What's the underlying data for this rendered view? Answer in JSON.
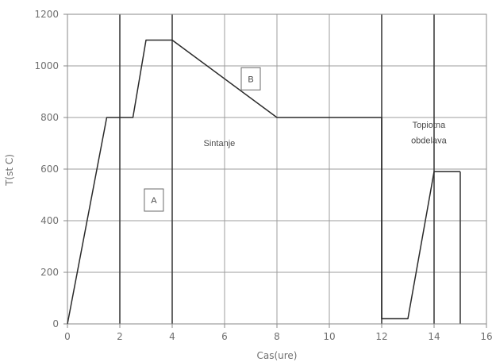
{
  "chart_data": {
    "type": "line",
    "title": "",
    "xlabel": "Cas(ure)",
    "ylabel": "T(st C)",
    "xlim": [
      0,
      16
    ],
    "ylim": [
      0,
      1200
    ],
    "xticks": [
      0,
      2,
      4,
      6,
      8,
      10,
      12,
      14,
      16
    ],
    "yticks": [
      0,
      200,
      400,
      600,
      800,
      1000,
      1200
    ],
    "grid": true,
    "bold_vertical_lines_at": [
      2,
      4,
      12,
      14,
      15
    ],
    "series": [
      {
        "name": "",
        "x": [
          0,
          1.5,
          2.5,
          3,
          4,
          8,
          12,
          12,
          13,
          14,
          15
        ],
        "y": [
          0,
          800,
          800,
          1100,
          1100,
          800,
          800,
          20,
          20,
          590,
          590
        ]
      }
    ],
    "annotations": [
      {
        "text": "A",
        "x": 3.3,
        "y": 480,
        "boxed": true
      },
      {
        "text": "B",
        "x": 7.0,
        "y": 950,
        "boxed": true
      },
      {
        "text": "Sintanje",
        "x": 5.8,
        "y": 690,
        "boxed": false
      },
      {
        "text": "Topiotna",
        "x": 13.8,
        "y": 760,
        "boxed": false
      },
      {
        "text": "obdelava",
        "x": 13.8,
        "y": 700,
        "boxed": false
      }
    ]
  }
}
